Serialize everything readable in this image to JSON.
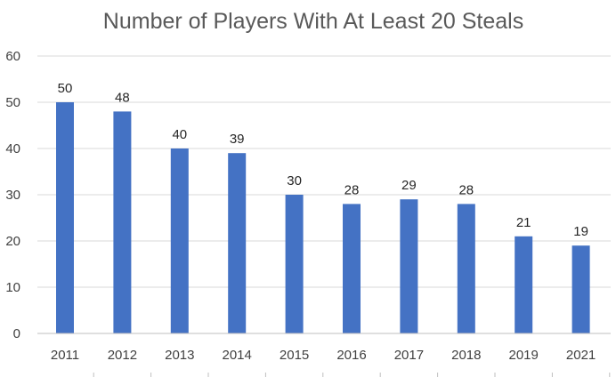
{
  "chart_data": {
    "type": "bar",
    "title": "Number of Players With At Least 20 Steals",
    "categories": [
      "2011",
      "2012",
      "2013",
      "2014",
      "2015",
      "2016",
      "2017",
      "2018",
      "2019",
      "2021"
    ],
    "values": [
      50,
      48,
      40,
      39,
      30,
      28,
      29,
      28,
      21,
      19
    ],
    "ylim": [
      0,
      60
    ],
    "yticks": [
      0,
      10,
      20,
      30,
      40,
      50,
      60
    ],
    "grid": true,
    "data_labels": true,
    "legend": "none",
    "colors": {
      "bar": "#4472C4",
      "grid": "#D9D9D9",
      "axis": "#BFBFBF"
    }
  }
}
